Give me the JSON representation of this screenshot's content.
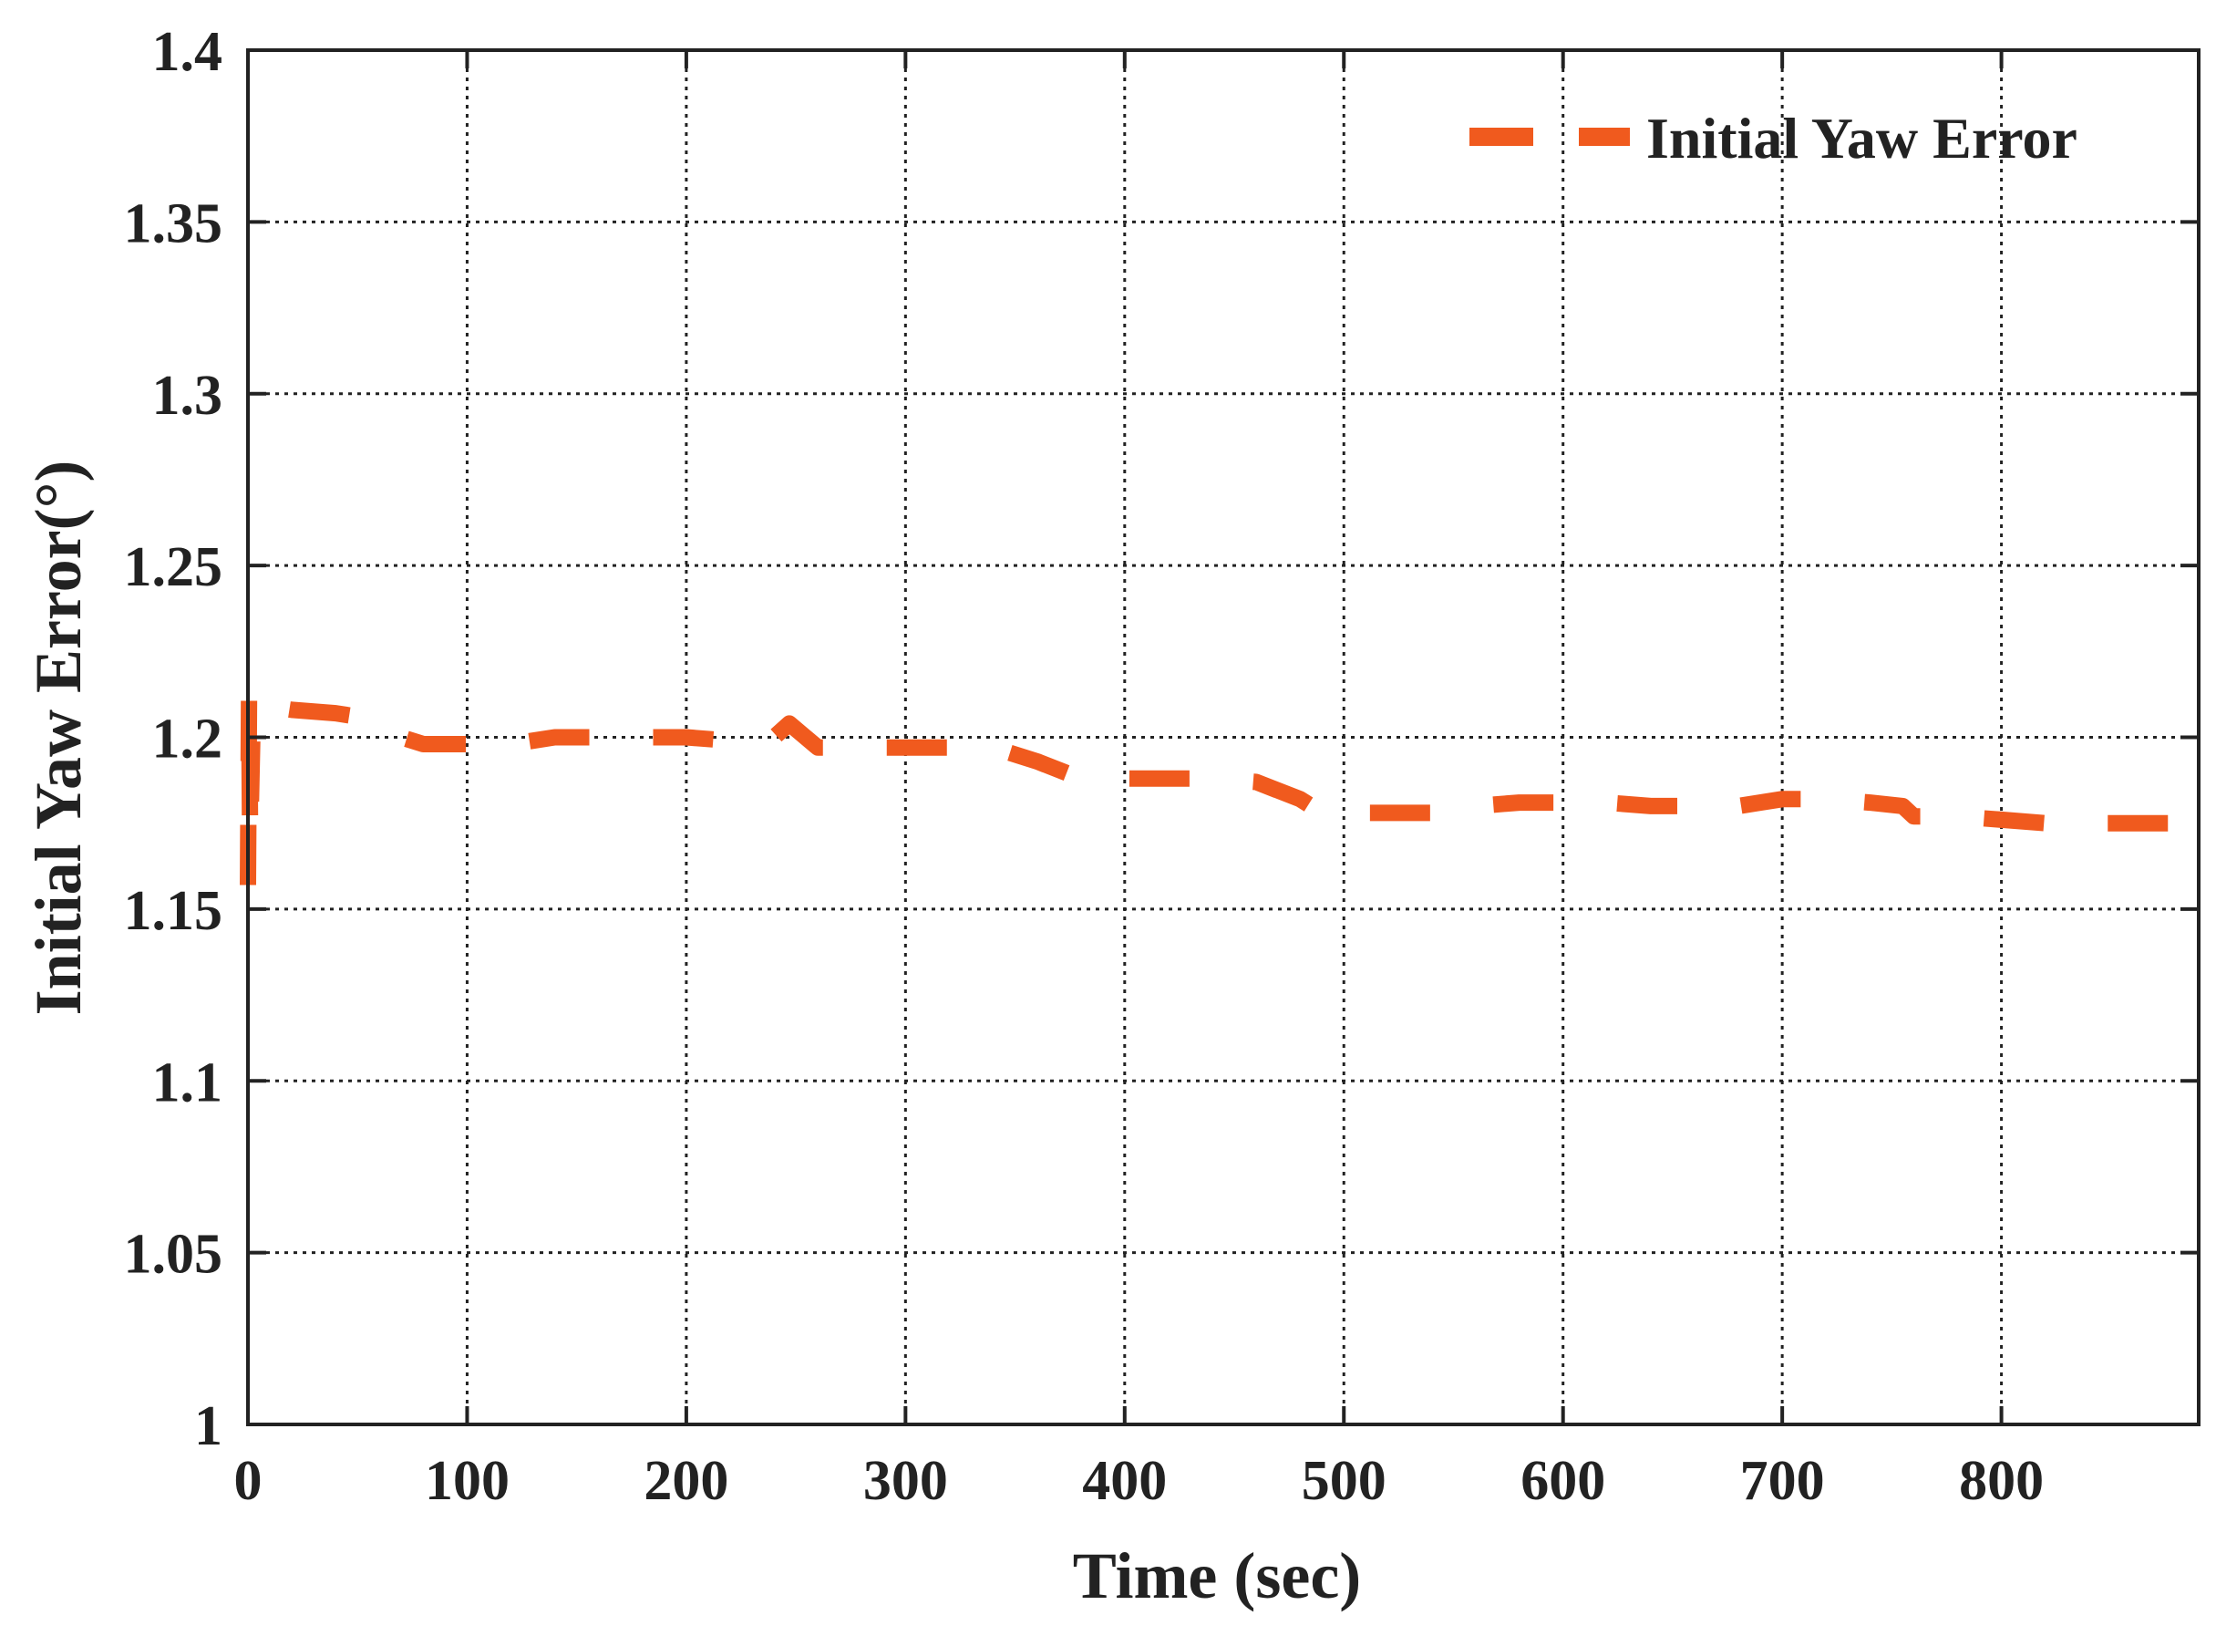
{
  "chart_data": {
    "type": "line",
    "title": "",
    "xlabel": "Time (sec)",
    "ylabel": "Initial Yaw Error(°)",
    "xlim": [
      0,
      890
    ],
    "ylim": [
      1.0,
      1.4
    ],
    "x_ticks": [
      0,
      100,
      200,
      300,
      400,
      500,
      600,
      700,
      800
    ],
    "x_tick_labels": [
      "0",
      "100",
      "200",
      "300",
      "400",
      "500",
      "600",
      "700",
      "800"
    ],
    "y_ticks": [
      1.0,
      1.05,
      1.1,
      1.15,
      1.2,
      1.25,
      1.3,
      1.35,
      1.4
    ],
    "y_tick_labels": [
      "1",
      "1.05",
      "1.1",
      "1.15",
      "1.2",
      "1.25",
      "1.3",
      "1.35",
      "1.4"
    ],
    "grid": true,
    "legend": {
      "position": "top-right"
    },
    "series": [
      {
        "name": "Initial Yaw Error",
        "color": "#f05a1e",
        "line_style": "dashed",
        "x": [
          0,
          0.5,
          1,
          2,
          3,
          5,
          10,
          20,
          40,
          60,
          70,
          80,
          100,
          120,
          140,
          160,
          180,
          200,
          220,
          240,
          247,
          260,
          300,
          340,
          360,
          380,
          400,
          420,
          440,
          460,
          480,
          490,
          500,
          520,
          540,
          560,
          580,
          600,
          620,
          640,
          660,
          680,
          700,
          720,
          740,
          755,
          760,
          780,
          800,
          820,
          840,
          860,
          890
        ],
        "y": [
          1.157,
          1.212,
          1.17,
          1.2,
          1.205,
          1.208,
          1.209,
          1.208,
          1.207,
          1.205,
          1.2,
          1.198,
          1.198,
          1.198,
          1.2,
          1.2,
          1.2,
          1.2,
          1.199,
          1.2,
          1.204,
          1.197,
          1.197,
          1.197,
          1.193,
          1.188,
          1.188,
          1.188,
          1.188,
          1.187,
          1.182,
          1.178,
          1.178,
          1.178,
          1.178,
          1.18,
          1.181,
          1.181,
          1.181,
          1.18,
          1.18,
          1.18,
          1.182,
          1.182,
          1.181,
          1.18,
          1.177,
          1.177,
          1.176,
          1.175,
          1.175,
          1.175,
          1.175
        ]
      }
    ]
  }
}
